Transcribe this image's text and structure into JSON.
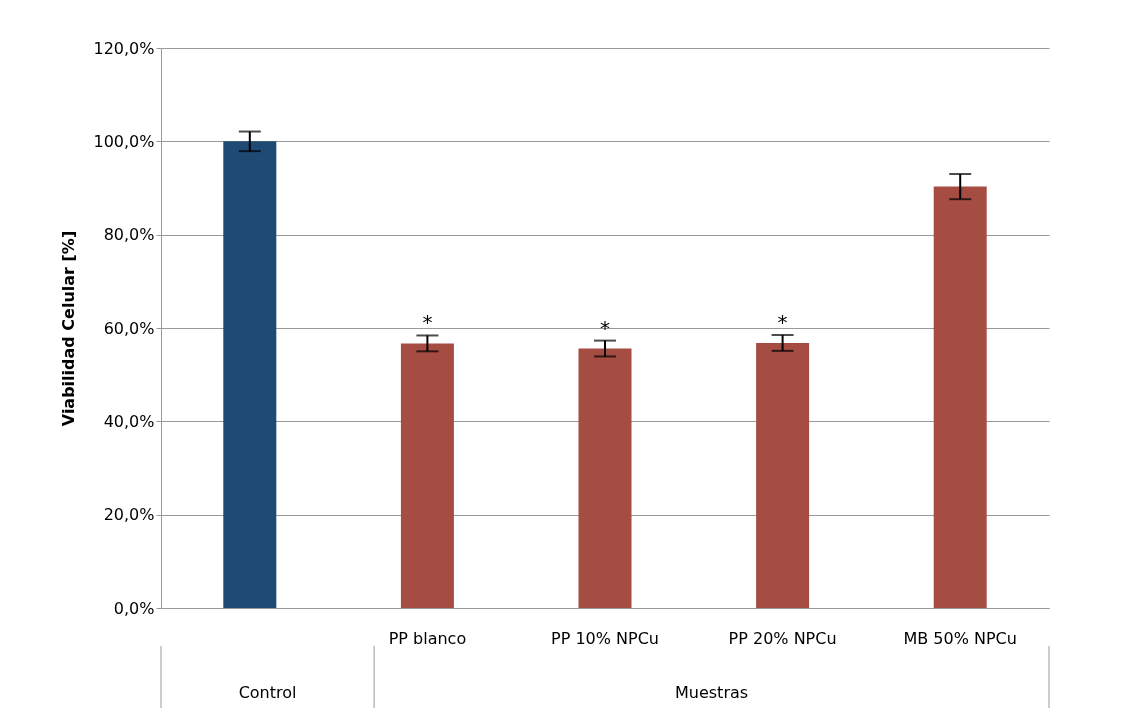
{
  "chart_data": {
    "type": "bar",
    "ylabel": "Viabilidad Celular [%]",
    "categories": [
      null,
      "PP blanco",
      "PP 10% NPCu",
      "PP 20% NPCu",
      "MB 50% NPCu"
    ],
    "values": [
      100.0,
      56.7,
      55.6,
      56.8,
      90.3
    ],
    "colors": [
      "#1f4a73",
      "#a64d43",
      "#a64d43",
      "#a64d43",
      "#a64d43"
    ],
    "errors": [
      2.1,
      1.7,
      1.7,
      1.7,
      2.7
    ],
    "ylim": [
      0,
      120
    ],
    "yticks": [
      {
        "value": 0,
        "label": "0,0%"
      },
      {
        "value": 20,
        "label": "20,0%"
      },
      {
        "value": 40,
        "label": "40,0%"
      },
      {
        "value": 60,
        "label": "60,0%"
      },
      {
        "value": 80,
        "label": "80,0%"
      },
      {
        "value": 100,
        "label": "100,0%"
      },
      {
        "value": 120,
        "label": "120,0%"
      }
    ],
    "grid": "y",
    "annotations": [
      "Control",
      "Muestras",
      "*",
      "*",
      "*"
    ]
  }
}
